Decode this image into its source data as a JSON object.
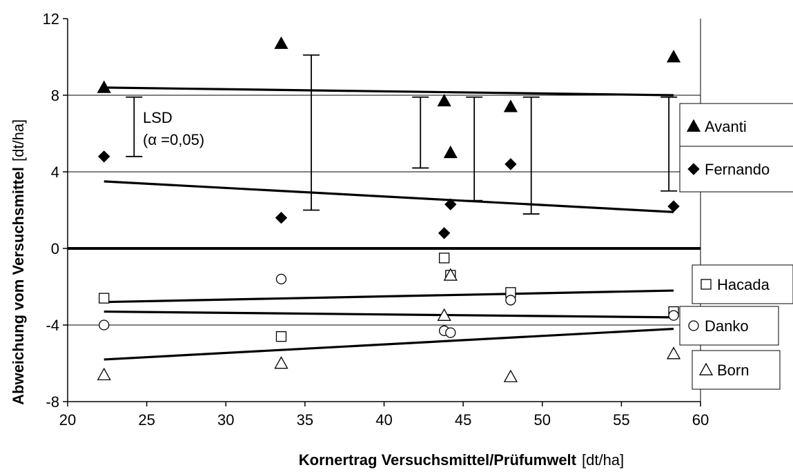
{
  "chart_data": {
    "type": "scatter",
    "xlabel_bold": "Kornertrag Versuchsmittel/Prüfumwelt",
    "xlabel_unit": "[dt/ha]",
    "ylabel_bold": "Abweichung vom Versuchsmittel",
    "ylabel_unit": "[dt/ha]",
    "xlim": [
      20,
      60
    ],
    "ylim": [
      -8,
      12
    ],
    "xticks": [
      20,
      25,
      30,
      35,
      40,
      45,
      50,
      55,
      60
    ],
    "yticks": [
      -8,
      -4,
      0,
      4,
      8,
      12
    ],
    "ygrid": [
      -4,
      4,
      8
    ],
    "series": [
      {
        "name": "Avanti",
        "marker": "triangle-filled",
        "points": [
          [
            22.3,
            8.4
          ],
          [
            33.5,
            10.7
          ],
          [
            43.8,
            7.7
          ],
          [
            44.2,
            5.0
          ],
          [
            48.0,
            7.4
          ],
          [
            58.3,
            10.0
          ]
        ],
        "trend": [
          [
            22.3,
            8.4
          ],
          [
            58.3,
            8.0
          ]
        ]
      },
      {
        "name": "Fernando",
        "marker": "diamond-filled",
        "points": [
          [
            22.3,
            4.8
          ],
          [
            33.5,
            1.6
          ],
          [
            43.8,
            0.8
          ],
          [
            44.2,
            2.3
          ],
          [
            48.0,
            4.4
          ],
          [
            58.3,
            2.2
          ]
        ],
        "trend": [
          [
            22.3,
            3.5
          ],
          [
            58.3,
            1.9
          ]
        ]
      },
      {
        "name": "Hacada",
        "marker": "square-open",
        "points": [
          [
            22.3,
            -2.6
          ],
          [
            33.5,
            -4.6
          ],
          [
            43.8,
            -0.5
          ],
          [
            44.2,
            -1.4
          ],
          [
            48.0,
            -2.3
          ],
          [
            58.3,
            -3.3
          ]
        ],
        "trend": [
          [
            22.3,
            -2.8
          ],
          [
            58.3,
            -2.2
          ]
        ]
      },
      {
        "name": "Danko",
        "marker": "circle-open",
        "points": [
          [
            22.3,
            -4.0
          ],
          [
            33.5,
            -1.6
          ],
          [
            43.8,
            -4.3
          ],
          [
            44.2,
            -4.4
          ],
          [
            48.0,
            -2.7
          ],
          [
            58.3,
            -3.5
          ]
        ],
        "trend": [
          [
            22.3,
            -3.3
          ],
          [
            58.3,
            -3.6
          ]
        ]
      },
      {
        "name": "Born",
        "marker": "triangle-open",
        "points": [
          [
            22.3,
            -6.6
          ],
          [
            33.5,
            -6.0
          ],
          [
            43.8,
            -3.5
          ],
          [
            44.2,
            -1.4
          ],
          [
            48.0,
            -6.7
          ],
          [
            58.3,
            -5.5
          ]
        ],
        "trend": [
          [
            22.3,
            -5.8
          ],
          [
            58.3,
            -4.2
          ]
        ]
      }
    ],
    "lsd_bars": [
      {
        "x": 24.2,
        "low": 4.8,
        "high": 7.9
      },
      {
        "x": 35.4,
        "low": 2.0,
        "high": 10.1
      },
      {
        "x": 42.3,
        "low": 4.2,
        "high": 7.9
      },
      {
        "x": 45.7,
        "low": 2.5,
        "high": 7.9
      },
      {
        "x": 49.3,
        "low": 1.8,
        "high": 7.9
      },
      {
        "x": 58.0,
        "low": 3.0,
        "high": 7.9
      }
    ],
    "annotation": {
      "line1": "LSD",
      "line2": "(α =0,05)"
    },
    "legend_groups": [
      [
        "Avanti",
        "Fernando"
      ],
      [
        "Hacada",
        "Danko",
        "Born"
      ]
    ]
  }
}
